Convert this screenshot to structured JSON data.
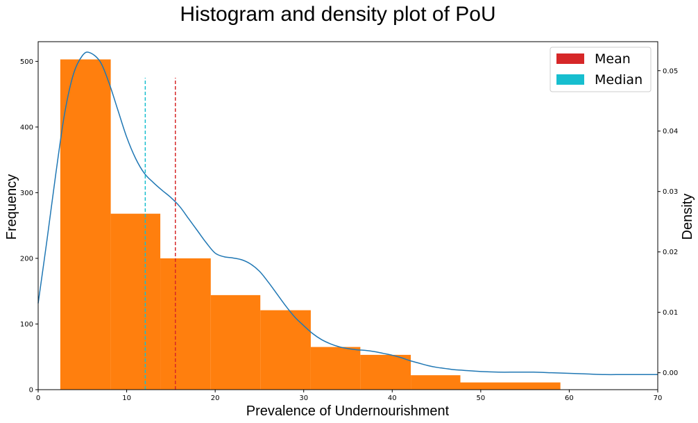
{
  "chart_data": {
    "type": "histogram",
    "title": "Histogram and density plot of PoU",
    "xlabel": "Prevalence of Undernourishment",
    "ylabel_left": "Frequency",
    "ylabel_right": "Density",
    "xlim": [
      0,
      70
    ],
    "ylim_left": [
      0,
      530
    ],
    "ylim_right": [
      -0.0028,
      0.0548
    ],
    "x_ticks": [
      0,
      10,
      20,
      30,
      40,
      50,
      60,
      70
    ],
    "y_ticks_left": [
      0,
      100,
      200,
      300,
      400,
      500
    ],
    "y_ticks_right": [
      0.0,
      0.01,
      0.02,
      0.03,
      0.04,
      0.05
    ],
    "y_tick_labels_right": [
      "0.00",
      "0.01",
      "0.02",
      "0.03",
      "0.04",
      "0.05"
    ],
    "histogram": {
      "color": "#ff7f0e",
      "bin_edges": [
        2.5,
        8.2,
        13.8,
        19.5,
        25.1,
        30.8,
        36.4,
        42.1,
        47.7,
        59.0
      ],
      "counts": [
        503,
        268,
        200,
        144,
        121,
        65,
        53,
        22,
        11
      ]
    },
    "density": {
      "color": "#1f77b4",
      "x": [
        0,
        1,
        2,
        3,
        4,
        5,
        5.8,
        7,
        8,
        9,
        10,
        11,
        12,
        13,
        14,
        15,
        16,
        17,
        18,
        19,
        20,
        21,
        22,
        23,
        24,
        25,
        26,
        27,
        28,
        29,
        30,
        31,
        32,
        33,
        34,
        35,
        36,
        37,
        38,
        39,
        40,
        41,
        42,
        43,
        44,
        45,
        46,
        47,
        48,
        50,
        52,
        54,
        56,
        58,
        60,
        62,
        64,
        66,
        68,
        70
      ],
      "y": [
        0.0115,
        0.022,
        0.033,
        0.043,
        0.0495,
        0.0525,
        0.053,
        0.0515,
        0.048,
        0.0435,
        0.039,
        0.0355,
        0.033,
        0.0315,
        0.0302,
        0.029,
        0.0275,
        0.0255,
        0.0235,
        0.0215,
        0.0198,
        0.0192,
        0.019,
        0.0187,
        0.018,
        0.0168,
        0.015,
        0.013,
        0.011,
        0.0092,
        0.0078,
        0.0065,
        0.0055,
        0.0048,
        0.0043,
        0.004,
        0.0038,
        0.0037,
        0.0035,
        0.0032,
        0.0029,
        0.0025,
        0.002,
        0.0016,
        0.0012,
        0.0009,
        0.0007,
        0.0005,
        0.0004,
        0.0002,
        0.0001,
        0.0001,
        0.0001,
        0.0,
        -0.0001,
        -0.0002,
        -0.0003,
        -0.0003,
        -0.0003,
        -0.0003
      ]
    },
    "mean": {
      "label": "Mean",
      "value": 15.5,
      "color": "#d62728"
    },
    "median": {
      "label": "Median",
      "value": 12.1,
      "color": "#17becf"
    },
    "reference_line_height": 475,
    "legend_position": "top-right"
  }
}
